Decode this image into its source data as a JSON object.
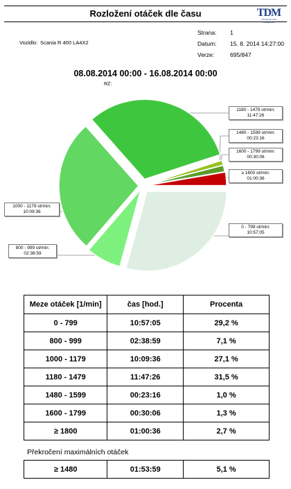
{
  "header": {
    "title": "Rozložení otáček dle času",
    "logo_text": "TDM",
    "logo_sub": "tachograph data management"
  },
  "vehicle": {
    "label": "Vozidlo:",
    "value": "Scania R 400 LA4X2"
  },
  "meta": {
    "page_label": "Strana:",
    "page_value": "1",
    "date_label": "Datum:",
    "date_value": "15. 8. 2014 14:27:00",
    "version_label": "Verze:",
    "version_value": "695/847"
  },
  "period": "08.08.2014 00:00 - 16.08.2014 00:00",
  "rz_label": "RZ:",
  "colors": {
    "s0": "#dfeee2",
    "s1": "#7ef07e",
    "s2": "#62d762",
    "s3": "#3ec73e",
    "s4": "#98c21e",
    "s5": "#5a9e2a",
    "s6": "#c40000"
  },
  "chart_data": {
    "type": "pie",
    "series": [
      {
        "range": "0 - 799",
        "time": "10:57:05",
        "percent": 29.2,
        "label": "0 - 799 ot/min:",
        "color_key": "s0"
      },
      {
        "range": "800 - 999",
        "time": "02:38:59",
        "percent": 7.1,
        "label": "800 - 999 ot/min:",
        "color_key": "s1"
      },
      {
        "range": "1000 - 1179",
        "time": "10:09:36",
        "percent": 27.1,
        "label": "1000 - 1179 ot/min:",
        "color_key": "s2"
      },
      {
        "range": "1180 - 1479",
        "time": "11:47:26",
        "percent": 31.5,
        "label": "1180 - 1479 ot/min:",
        "color_key": "s3"
      },
      {
        "range": "1480 - 1599",
        "time": "00:23:16",
        "percent": 1.0,
        "label": "1480 - 1599 ot/min:",
        "color_key": "s4"
      },
      {
        "range": "1600 - 1799",
        "time": "00:30:06",
        "percent": 1.3,
        "label": "1600 - 1799 ot/min:",
        "color_key": "s5"
      },
      {
        "range": "≥ 1800",
        "time": "01:00:36",
        "percent": 2.7,
        "label": "≥ 1800 ot/min:",
        "color_key": "s6"
      }
    ]
  },
  "table": {
    "headers": [
      "Meze otáček [1/min]",
      "čas [hod.]",
      "Procenta"
    ],
    "rows": [
      [
        "0 - 799",
        "10:57:05",
        "29,2 %"
      ],
      [
        "800 - 999",
        "02:38:59",
        "7,1 %"
      ],
      [
        "1000 - 1179",
        "10:09:36",
        "27,1 %"
      ],
      [
        "1180 - 1479",
        "11:47:26",
        "31,5 %"
      ],
      [
        "1480 - 1599",
        "00:23:16",
        "1,0 %"
      ],
      [
        "1600 - 1799",
        "00:30:06",
        "1,3 %"
      ],
      [
        "≥ 1800",
        "01:00:36",
        "2,7 %"
      ]
    ]
  },
  "overrun": {
    "title": "Překročení maximálních otáček",
    "row": [
      "≥ 1480",
      "01:53:59",
      "5,1 %"
    ]
  }
}
